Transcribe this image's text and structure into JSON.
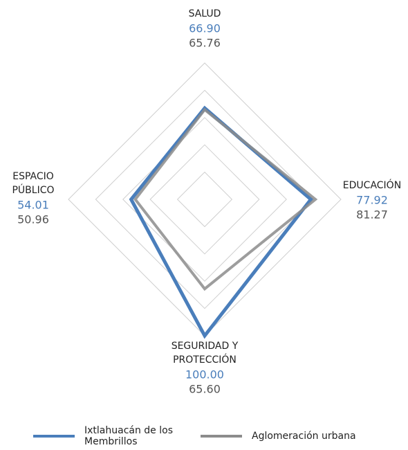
{
  "chart_data": {
    "type": "radar",
    "categories": [
      "SALUD",
      "EDUCACIÓN",
      "SEGURIDAD Y PROTECCIÓN",
      "ESPACIO PÚBLICO"
    ],
    "series": [
      {
        "name": "Ixtlahuacán de los Membrillos",
        "color": "#4a7ebb",
        "values": [
          66.9,
          77.92,
          100,
          54.01
        ],
        "value_labels": [
          "66.90",
          "77.92",
          "100.00",
          "54.01"
        ]
      },
      {
        "name": "Aglomeración urbana",
        "color": "#8c8c8c",
        "values": [
          65.76,
          81.27,
          65.6,
          50.96
        ],
        "value_labels": [
          "65.76",
          "81.27",
          "65.60",
          "50.96"
        ]
      }
    ],
    "rlim": [
      0,
      100
    ],
    "rticks": [
      20,
      40,
      60,
      80,
      100
    ],
    "grid": true,
    "legend": "bottom"
  }
}
